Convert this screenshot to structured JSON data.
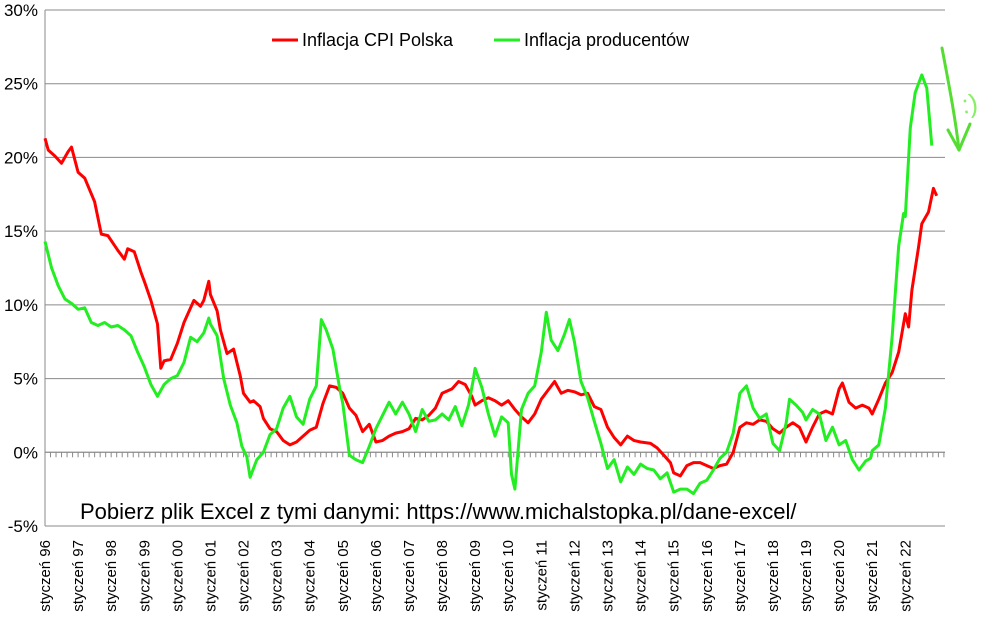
{
  "chart_data": {
    "type": "line",
    "title": "",
    "xlabel": "",
    "ylabel": "",
    "ylim": [
      -0.05,
      0.3
    ],
    "yticks": [
      "-5%",
      "0%",
      "5%",
      "10%",
      "15%",
      "20%",
      "25%",
      "30%"
    ],
    "x_tick_labels": [
      "styczeń 96",
      "styczeń 97",
      "styczeń 98",
      "styczeń 99",
      "styczeń 00",
      "styczeń 01",
      "styczeń 02",
      "styczeń 03",
      "styczeń 04",
      "styczeń 05",
      "styczeń 06",
      "styczeń 07",
      "styczeń 08",
      "styczeń 09",
      "styczeń 10",
      "styczeń 11",
      "styczeń 12",
      "styczeń 13",
      "styczeń 14",
      "styczeń 15",
      "styczeń 16",
      "styczeń 17",
      "styczeń 18",
      "styczeń 19",
      "styczeń 20",
      "styczeń 21",
      "styczeń 22"
    ],
    "grid": "horizontal",
    "legend_position": "top",
    "note": "Pobierz plik Excel z tymi danymi: https://www.michalstopka.pl/dane-excel/",
    "annotation": ":)",
    "series": [
      {
        "name": "Inflacja CPI Polska",
        "color": "#ff0000",
        "points": [
          [
            1996.0,
            0.213
          ],
          [
            1996.1,
            0.205
          ],
          [
            1996.3,
            0.201
          ],
          [
            1996.5,
            0.196
          ],
          [
            1996.7,
            0.204
          ],
          [
            1996.8,
            0.207
          ],
          [
            1997.0,
            0.19
          ],
          [
            1997.2,
            0.186
          ],
          [
            1997.5,
            0.17
          ],
          [
            1997.7,
            0.148
          ],
          [
            1997.9,
            0.147
          ],
          [
            1998.2,
            0.137
          ],
          [
            1998.4,
            0.131
          ],
          [
            1998.5,
            0.138
          ],
          [
            1998.7,
            0.136
          ],
          [
            1998.9,
            0.122
          ],
          [
            1999.0,
            0.116
          ],
          [
            1999.2,
            0.103
          ],
          [
            1999.4,
            0.087
          ],
          [
            1999.5,
            0.057
          ],
          [
            1999.6,
            0.062
          ],
          [
            1999.8,
            0.063
          ],
          [
            2000.0,
            0.074
          ],
          [
            2000.2,
            0.088
          ],
          [
            2000.4,
            0.098
          ],
          [
            2000.5,
            0.103
          ],
          [
            2000.7,
            0.099
          ],
          [
            2000.8,
            0.103
          ],
          [
            2000.95,
            0.116
          ],
          [
            2001.0,
            0.107
          ],
          [
            2001.2,
            0.096
          ],
          [
            2001.3,
            0.083
          ],
          [
            2001.5,
            0.067
          ],
          [
            2001.7,
            0.07
          ],
          [
            2001.9,
            0.052
          ],
          [
            2002.0,
            0.04
          ],
          [
            2002.2,
            0.034
          ],
          [
            2002.3,
            0.035
          ],
          [
            2002.5,
            0.031
          ],
          [
            2002.6,
            0.023
          ],
          [
            2002.8,
            0.016
          ],
          [
            2003.0,
            0.014
          ],
          [
            2003.2,
            0.008
          ],
          [
            2003.4,
            0.005
          ],
          [
            2003.6,
            0.007
          ],
          [
            2003.8,
            0.011
          ],
          [
            2004.0,
            0.015
          ],
          [
            2004.2,
            0.017
          ],
          [
            2004.4,
            0.033
          ],
          [
            2004.6,
            0.045
          ],
          [
            2004.8,
            0.044
          ],
          [
            2005.0,
            0.04
          ],
          [
            2005.2,
            0.03
          ],
          [
            2005.4,
            0.025
          ],
          [
            2005.6,
            0.014
          ],
          [
            2005.8,
            0.019
          ],
          [
            2006.0,
            0.007
          ],
          [
            2006.2,
            0.008
          ],
          [
            2006.4,
            0.011
          ],
          [
            2006.6,
            0.013
          ],
          [
            2006.8,
            0.014
          ],
          [
            2007.0,
            0.016
          ],
          [
            2007.2,
            0.023
          ],
          [
            2007.4,
            0.022
          ],
          [
            2007.6,
            0.025
          ],
          [
            2007.8,
            0.03
          ],
          [
            2008.0,
            0.04
          ],
          [
            2008.3,
            0.043
          ],
          [
            2008.5,
            0.048
          ],
          [
            2008.7,
            0.046
          ],
          [
            2008.9,
            0.038
          ],
          [
            2009.0,
            0.032
          ],
          [
            2009.2,
            0.035
          ],
          [
            2009.4,
            0.037
          ],
          [
            2009.6,
            0.035
          ],
          [
            2009.8,
            0.032
          ],
          [
            2010.0,
            0.035
          ],
          [
            2010.2,
            0.029
          ],
          [
            2010.4,
            0.024
          ],
          [
            2010.6,
            0.02
          ],
          [
            2010.8,
            0.026
          ],
          [
            2011.0,
            0.036
          ],
          [
            2011.2,
            0.042
          ],
          [
            2011.4,
            0.048
          ],
          [
            2011.6,
            0.04
          ],
          [
            2011.8,
            0.042
          ],
          [
            2012.0,
            0.041
          ],
          [
            2012.2,
            0.039
          ],
          [
            2012.4,
            0.04
          ],
          [
            2012.6,
            0.031
          ],
          [
            2012.8,
            0.029
          ],
          [
            2013.0,
            0.017
          ],
          [
            2013.2,
            0.01
          ],
          [
            2013.4,
            0.005
          ],
          [
            2013.6,
            0.011
          ],
          [
            2013.8,
            0.008
          ],
          [
            2014.0,
            0.007
          ],
          [
            2014.3,
            0.006
          ],
          [
            2014.5,
            0.003
          ],
          [
            2014.7,
            -0.002
          ],
          [
            2014.9,
            -0.007
          ],
          [
            2015.0,
            -0.014
          ],
          [
            2015.2,
            -0.016
          ],
          [
            2015.4,
            -0.009
          ],
          [
            2015.6,
            -0.007
          ],
          [
            2015.8,
            -0.007
          ],
          [
            2016.0,
            -0.009
          ],
          [
            2016.2,
            -0.011
          ],
          [
            2016.4,
            -0.009
          ],
          [
            2016.6,
            -0.008
          ],
          [
            2016.8,
            0.0
          ],
          [
            2017.0,
            0.017
          ],
          [
            2017.2,
            0.02
          ],
          [
            2017.4,
            0.019
          ],
          [
            2017.6,
            0.022
          ],
          [
            2017.8,
            0.021
          ],
          [
            2018.0,
            0.016
          ],
          [
            2018.2,
            0.013
          ],
          [
            2018.4,
            0.017
          ],
          [
            2018.6,
            0.02
          ],
          [
            2018.8,
            0.017
          ],
          [
            2019.0,
            0.007
          ],
          [
            2019.2,
            0.017
          ],
          [
            2019.4,
            0.026
          ],
          [
            2019.6,
            0.028
          ],
          [
            2019.8,
            0.026
          ],
          [
            2020.0,
            0.043
          ],
          [
            2020.1,
            0.047
          ],
          [
            2020.3,
            0.034
          ],
          [
            2020.5,
            0.03
          ],
          [
            2020.7,
            0.032
          ],
          [
            2020.9,
            0.03
          ],
          [
            2021.0,
            0.026
          ],
          [
            2021.2,
            0.036
          ],
          [
            2021.4,
            0.047
          ],
          [
            2021.6,
            0.054
          ],
          [
            2021.8,
            0.068
          ],
          [
            2022.0,
            0.094
          ],
          [
            2022.1,
            0.085
          ],
          [
            2022.2,
            0.11
          ],
          [
            2022.4,
            0.139
          ],
          [
            2022.5,
            0.155
          ],
          [
            2022.7,
            0.163
          ],
          [
            2022.85,
            0.179
          ],
          [
            2022.95,
            0.174
          ]
        ]
      },
      {
        "name": "Inflacja producentów",
        "color": "#22ee22",
        "points": [
          [
            1996.0,
            0.143
          ],
          [
            1996.2,
            0.125
          ],
          [
            1996.4,
            0.113
          ],
          [
            1996.6,
            0.104
          ],
          [
            1996.8,
            0.101
          ],
          [
            1997.0,
            0.097
          ],
          [
            1997.2,
            0.098
          ],
          [
            1997.4,
            0.088
          ],
          [
            1997.6,
            0.086
          ],
          [
            1997.8,
            0.088
          ],
          [
            1998.0,
            0.085
          ],
          [
            1998.2,
            0.086
          ],
          [
            1998.4,
            0.083
          ],
          [
            1998.6,
            0.079
          ],
          [
            1998.8,
            0.068
          ],
          [
            1999.0,
            0.058
          ],
          [
            1999.2,
            0.046
          ],
          [
            1999.4,
            0.038
          ],
          [
            1999.6,
            0.046
          ],
          [
            1999.8,
            0.05
          ],
          [
            2000.0,
            0.052
          ],
          [
            2000.2,
            0.061
          ],
          [
            2000.4,
            0.078
          ],
          [
            2000.6,
            0.075
          ],
          [
            2000.8,
            0.081
          ],
          [
            2000.95,
            0.091
          ],
          [
            2001.0,
            0.087
          ],
          [
            2001.2,
            0.079
          ],
          [
            2001.4,
            0.05
          ],
          [
            2001.6,
            0.032
          ],
          [
            2001.8,
            0.02
          ],
          [
            2001.95,
            0.004
          ],
          [
            2002.1,
            -0.003
          ],
          [
            2002.2,
            -0.017
          ],
          [
            2002.4,
            -0.005
          ],
          [
            2002.6,
            0.0
          ],
          [
            2002.8,
            0.012
          ],
          [
            2003.0,
            0.016
          ],
          [
            2003.2,
            0.03
          ],
          [
            2003.4,
            0.038
          ],
          [
            2003.6,
            0.024
          ],
          [
            2003.8,
            0.019
          ],
          [
            2004.0,
            0.036
          ],
          [
            2004.2,
            0.045
          ],
          [
            2004.35,
            0.09
          ],
          [
            2004.5,
            0.083
          ],
          [
            2004.7,
            0.07
          ],
          [
            2004.9,
            0.044
          ],
          [
            2005.0,
            0.033
          ],
          [
            2005.2,
            -0.002
          ],
          [
            2005.4,
            -0.005
          ],
          [
            2005.6,
            -0.007
          ],
          [
            2005.8,
            0.004
          ],
          [
            2006.0,
            0.016
          ],
          [
            2006.2,
            0.025
          ],
          [
            2006.4,
            0.034
          ],
          [
            2006.6,
            0.026
          ],
          [
            2006.8,
            0.034
          ],
          [
            2007.0,
            0.026
          ],
          [
            2007.2,
            0.014
          ],
          [
            2007.4,
            0.029
          ],
          [
            2007.6,
            0.021
          ],
          [
            2007.8,
            0.022
          ],
          [
            2008.0,
            0.026
          ],
          [
            2008.2,
            0.022
          ],
          [
            2008.4,
            0.031
          ],
          [
            2008.6,
            0.018
          ],
          [
            2008.8,
            0.032
          ],
          [
            2008.95,
            0.05
          ],
          [
            2009.0,
            0.057
          ],
          [
            2009.2,
            0.044
          ],
          [
            2009.4,
            0.026
          ],
          [
            2009.6,
            0.011
          ],
          [
            2009.8,
            0.024
          ],
          [
            2010.0,
            0.02
          ],
          [
            2010.1,
            -0.015
          ],
          [
            2010.2,
            -0.025
          ],
          [
            2010.4,
            0.029
          ],
          [
            2010.6,
            0.04
          ],
          [
            2010.8,
            0.045
          ],
          [
            2011.0,
            0.068
          ],
          [
            2011.15,
            0.095
          ],
          [
            2011.3,
            0.076
          ],
          [
            2011.5,
            0.069
          ],
          [
            2011.7,
            0.08
          ],
          [
            2011.85,
            0.09
          ],
          [
            2012.0,
            0.075
          ],
          [
            2012.2,
            0.048
          ],
          [
            2012.4,
            0.037
          ],
          [
            2012.6,
            0.021
          ],
          [
            2012.8,
            0.006
          ],
          [
            2013.0,
            -0.011
          ],
          [
            2013.2,
            -0.005
          ],
          [
            2013.4,
            -0.02
          ],
          [
            2013.6,
            -0.01
          ],
          [
            2013.8,
            -0.015
          ],
          [
            2014.0,
            -0.008
          ],
          [
            2014.2,
            -0.011
          ],
          [
            2014.4,
            -0.012
          ],
          [
            2014.6,
            -0.018
          ],
          [
            2014.8,
            -0.014
          ],
          [
            2015.0,
            -0.027
          ],
          [
            2015.2,
            -0.025
          ],
          [
            2015.4,
            -0.025
          ],
          [
            2015.6,
            -0.028
          ],
          [
            2015.8,
            -0.021
          ],
          [
            2016.0,
            -0.019
          ],
          [
            2016.2,
            -0.012
          ],
          [
            2016.4,
            -0.004
          ],
          [
            2016.6,
            0.0
          ],
          [
            2016.8,
            0.013
          ],
          [
            2017.0,
            0.04
          ],
          [
            2017.2,
            0.045
          ],
          [
            2017.4,
            0.03
          ],
          [
            2017.6,
            0.023
          ],
          [
            2017.8,
            0.026
          ],
          [
            2018.0,
            0.006
          ],
          [
            2018.2,
            0.001
          ],
          [
            2018.4,
            0.02
          ],
          [
            2018.5,
            0.036
          ],
          [
            2018.7,
            0.032
          ],
          [
            2018.9,
            0.027
          ],
          [
            2019.0,
            0.022
          ],
          [
            2019.2,
            0.029
          ],
          [
            2019.4,
            0.026
          ],
          [
            2019.6,
            0.008
          ],
          [
            2019.8,
            0.017
          ],
          [
            2020.0,
            0.005
          ],
          [
            2020.2,
            0.008
          ],
          [
            2020.4,
            -0.005
          ],
          [
            2020.6,
            -0.012
          ],
          [
            2020.8,
            -0.006
          ],
          [
            2020.95,
            -0.004
          ],
          [
            2021.0,
            0.001
          ],
          [
            2021.2,
            0.005
          ],
          [
            2021.4,
            0.03
          ],
          [
            2021.6,
            0.078
          ],
          [
            2021.8,
            0.14
          ],
          [
            2021.95,
            0.162
          ],
          [
            2022.0,
            0.16
          ],
          [
            2022.15,
            0.22
          ],
          [
            2022.3,
            0.244
          ],
          [
            2022.5,
            0.256
          ],
          [
            2022.65,
            0.247
          ],
          [
            2022.8,
            0.208
          ]
        ]
      }
    ]
  }
}
